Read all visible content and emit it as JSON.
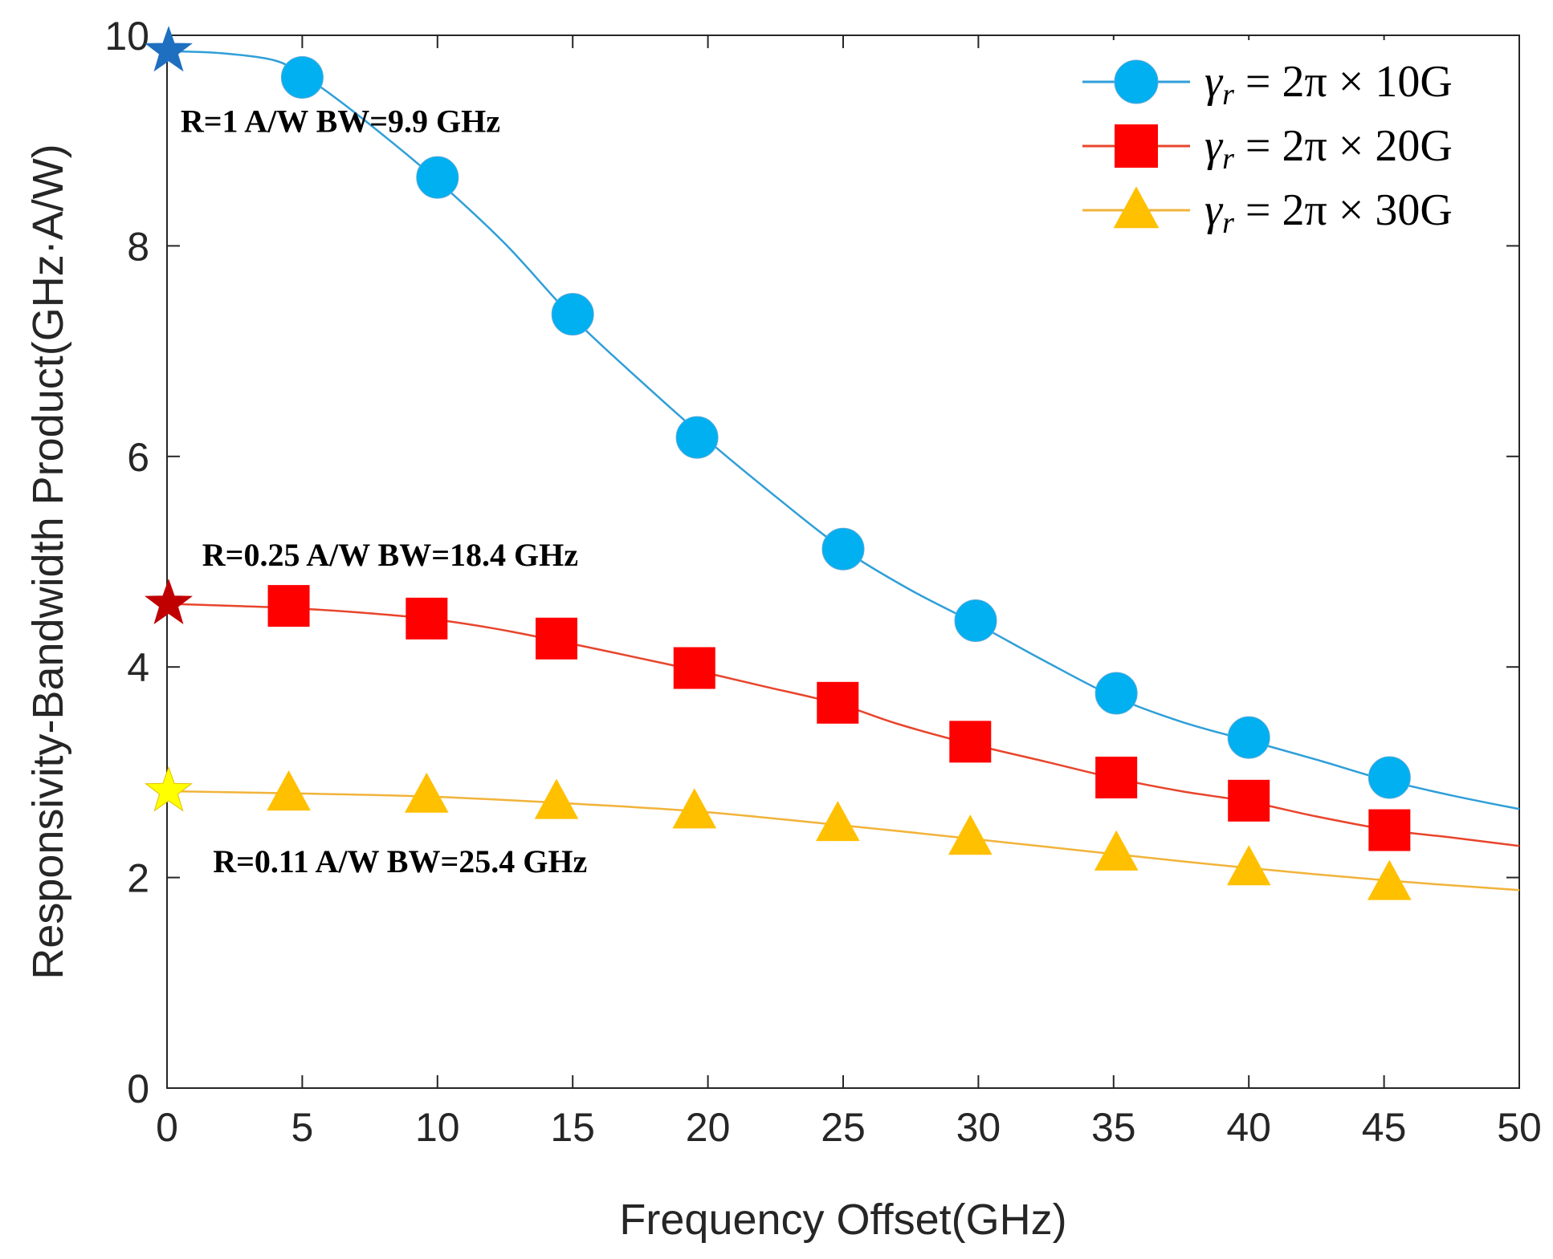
{
  "chart_data": {
    "type": "line",
    "title": "",
    "xlabel": "Frequency Offset(GHz)",
    "ylabel": "Responsivity-Bandwidth Product(GHz·A/W)",
    "xlim": [
      0,
      50
    ],
    "ylim": [
      0,
      10
    ],
    "xticks": [
      0,
      5,
      10,
      15,
      20,
      25,
      30,
      35,
      40,
      45,
      50
    ],
    "xtick_labels": [
      "0",
      "5",
      "10",
      "15",
      "20",
      "25",
      "30",
      "35",
      "40",
      "45",
      "50"
    ],
    "yticks": [
      0,
      2,
      4,
      6,
      8,
      10
    ],
    "ytick_labels": [
      "0",
      "2",
      "4",
      "6",
      "8",
      "10"
    ],
    "grid": false,
    "legend_position": "top-right",
    "series": [
      {
        "name": "γr = 2π × 10G",
        "legend_symbol": "γ",
        "legend_subscript": "r",
        "legend_expression": " = 2π × 10G",
        "color": "#2f9fd8",
        "marker": "circle",
        "marker_color": "#00b0f0",
        "curve": [
          [
            0,
            9.85
          ],
          [
            2,
            9.83
          ],
          [
            4,
            9.76
          ],
          [
            5,
            9.62
          ],
          [
            6,
            9.45
          ],
          [
            8,
            9.05
          ],
          [
            10,
            8.62
          ],
          [
            12.5,
            8.02
          ],
          [
            15,
            7.32
          ],
          [
            17.5,
            6.72
          ],
          [
            20,
            6.15
          ],
          [
            22.5,
            5.62
          ],
          [
            25,
            5.12
          ],
          [
            27.5,
            4.73
          ],
          [
            30,
            4.4
          ],
          [
            32.5,
            4.05
          ],
          [
            35,
            3.72
          ],
          [
            37.5,
            3.48
          ],
          [
            40,
            3.3
          ],
          [
            42.5,
            3.12
          ],
          [
            45,
            2.93
          ],
          [
            47.5,
            2.78
          ],
          [
            50,
            2.65
          ]
        ],
        "markers": [
          [
            5,
            9.6
          ],
          [
            10,
            8.65
          ],
          [
            15,
            7.35
          ],
          [
            19.6,
            6.18
          ],
          [
            25,
            5.12
          ],
          [
            29.9,
            4.44
          ],
          [
            35.1,
            3.75
          ],
          [
            40,
            3.33
          ],
          [
            45.2,
            2.95
          ]
        ]
      },
      {
        "name": "γr = 2π × 20G",
        "legend_symbol": "γ",
        "legend_subscript": "r",
        "legend_expression": " = 2π × 20G",
        "color": "#e8452c",
        "marker": "square",
        "marker_color": "#ff0000",
        "curve": [
          [
            0,
            4.6
          ],
          [
            2.5,
            4.58
          ],
          [
            4.5,
            4.56
          ],
          [
            7,
            4.52
          ],
          [
            9.6,
            4.46
          ],
          [
            12,
            4.37
          ],
          [
            14.4,
            4.25
          ],
          [
            17,
            4.11
          ],
          [
            19.5,
            3.97
          ],
          [
            22,
            3.82
          ],
          [
            24.8,
            3.65
          ],
          [
            27,
            3.46
          ],
          [
            29.7,
            3.27
          ],
          [
            32.5,
            3.1
          ],
          [
            35.1,
            2.94
          ],
          [
            37.5,
            2.82
          ],
          [
            40,
            2.72
          ],
          [
            42.5,
            2.58
          ],
          [
            45.2,
            2.45
          ],
          [
            47.5,
            2.38
          ],
          [
            50,
            2.3
          ]
        ],
        "markers": [
          [
            4.5,
            4.58
          ],
          [
            9.6,
            4.46
          ],
          [
            14.4,
            4.27
          ],
          [
            19.5,
            3.99
          ],
          [
            24.8,
            3.66
          ],
          [
            29.7,
            3.29
          ],
          [
            35.1,
            2.95
          ],
          [
            40,
            2.73
          ],
          [
            45.2,
            2.45
          ]
        ]
      },
      {
        "name": "γr = 2π × 30G",
        "legend_symbol": "γ",
        "legend_subscript": "r",
        "legend_expression": " = 2π × 30G",
        "color": "#f2b33a",
        "marker": "triangle",
        "marker_color": "#ffc000",
        "curve": [
          [
            0,
            2.82
          ],
          [
            4.5,
            2.8
          ],
          [
            9.6,
            2.77
          ],
          [
            14.4,
            2.71
          ],
          [
            19.5,
            2.63
          ],
          [
            24.8,
            2.5
          ],
          [
            29.7,
            2.37
          ],
          [
            35.1,
            2.22
          ],
          [
            40,
            2.09
          ],
          [
            45.2,
            1.97
          ],
          [
            50,
            1.88
          ]
        ],
        "markers": [
          [
            4.5,
            2.8
          ],
          [
            9.6,
            2.78
          ],
          [
            14.4,
            2.72
          ],
          [
            19.5,
            2.63
          ],
          [
            24.8,
            2.51
          ],
          [
            29.7,
            2.38
          ],
          [
            35.1,
            2.23
          ],
          [
            40,
            2.09
          ],
          [
            45.2,
            1.95
          ]
        ]
      }
    ],
    "special_points": [
      {
        "name": "star-blue",
        "x": 0,
        "y": 9.85,
        "color": "#1f6fc0"
      },
      {
        "name": "star-red",
        "x": 0,
        "y": 4.6,
        "color": "#c00000"
      },
      {
        "name": "star-yellow",
        "x": 0,
        "y": 2.82,
        "color": "#ffff00"
      }
    ],
    "annotations": [
      {
        "text": "R=1 A/W BW=9.9 GHz",
        "x": 0.5,
        "y": 9.08
      },
      {
        "text": "R=0.25 A/W BW=18.4 GHz",
        "x": 1.3,
        "y": 4.96
      },
      {
        "text": "R=0.11 A/W BW=25.4 GHz",
        "x": 1.7,
        "y": 2.05
      }
    ]
  }
}
